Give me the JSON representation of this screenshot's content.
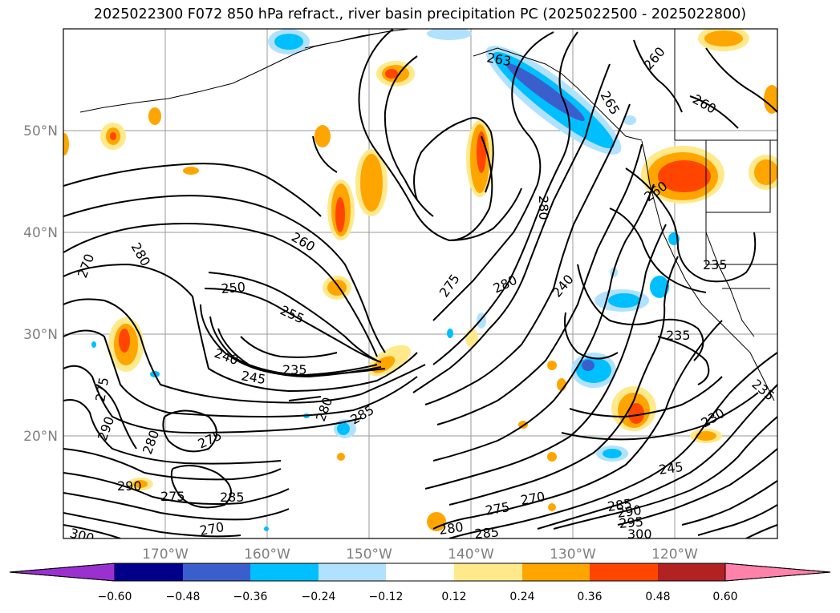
{
  "title": "2025022300 F072 850 hPa refract., river basin precipitation PC (2025022500 - 2025022800)",
  "lat_labels": [
    "50°N",
    "40°N",
    "30°N",
    "20°N"
  ],
  "lon_labels": [
    "170°W",
    "160°W",
    "150°W",
    "140°W",
    "130°W",
    "120°W"
  ],
  "contour_labels": [
    "230",
    "235",
    "235",
    "235",
    "235",
    "240",
    "240",
    "245",
    "245",
    "250",
    "255",
    "260",
    "260",
    "260",
    "260",
    "263",
    "265",
    "270",
    "270",
    "270",
    "275",
    "275",
    "275",
    "275",
    "275",
    "280",
    "280",
    "280",
    "280",
    "280",
    "280",
    "285",
    "285",
    "285",
    "285",
    "290",
    "290",
    "290",
    "295",
    "300",
    "300"
  ],
  "colorbar": {
    "ticks": [
      "−0.60",
      "−0.48",
      "−0.36",
      "−0.24",
      "−0.12",
      "0.12",
      "0.24",
      "0.36",
      "0.48",
      "0.60"
    ],
    "colors": [
      "#9b30d0",
      "#00008b",
      "#3a5fcd",
      "#00bfff",
      "#b0e2ff",
      "#ffffff",
      "#ffe98a",
      "#ffa500",
      "#ff4500",
      "#b22222",
      "#ff82ab"
    ]
  },
  "legend_bins": {
    "neg_light": "#b0e2ff",
    "neg_mid": "#00bfff",
    "neg_dark": "#3a5fcd",
    "pos_light": "#ffe98a",
    "pos_mid": "#ffa500",
    "pos_dark": "#ff4500"
  }
}
